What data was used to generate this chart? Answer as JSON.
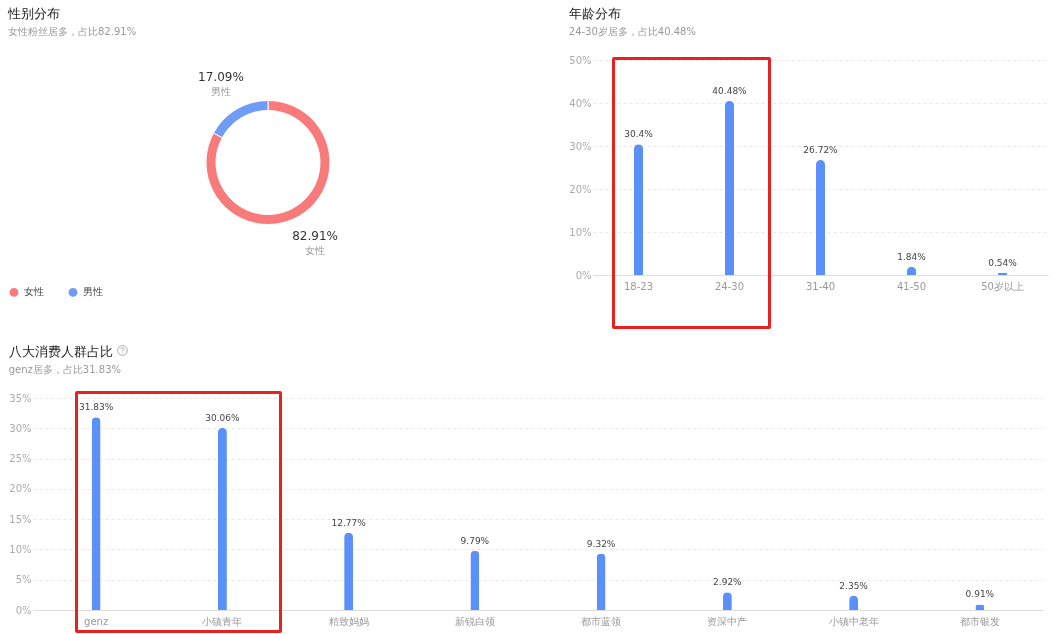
{
  "chart_data": [
    {
      "type": "donut",
      "title": "性别分布",
      "subtitle": "女性粉丝居多，占比82.91%",
      "categories": [
        "女性",
        "男性"
      ],
      "values": [
        82.91,
        17.09
      ],
      "colors": [
        "#f87a7a",
        "#6f9cf7"
      ],
      "value_labels": [
        "82.91%",
        "17.09%"
      ],
      "legend": "bottom"
    },
    {
      "type": "bar",
      "title": "年龄分布",
      "subtitle": "24-30岁居多，占比40.48%",
      "categories": [
        "18-23",
        "24-30",
        "31-40",
        "41-50",
        "50岁以上"
      ],
      "values": [
        30.4,
        40.48,
        26.72,
        1.84,
        0.54
      ],
      "color": "#5b8ff9",
      "value_labels": [
        "30.4%",
        "40.48%",
        "26.72%",
        "1.84%",
        "0.54%"
      ],
      "ylim": [
        0,
        50
      ],
      "yticks": [
        {
          "value": 0,
          "label": "0%"
        },
        {
          "value": 10,
          "label": "10%"
        },
        {
          "value": 20,
          "label": "20%"
        },
        {
          "value": 30,
          "label": "30%"
        },
        {
          "value": 40,
          "label": "40%"
        },
        {
          "value": 50,
          "label": "50%"
        }
      ],
      "grid": "y"
    },
    {
      "type": "bar",
      "title": "八大消费人群占比",
      "subtitle": "genz居多，占比31.83%",
      "categories": [
        "genz",
        "小镇青年",
        "精致妈妈",
        "新锐白领",
        "都市蓝领",
        "资深中产",
        "小镇中老年",
        "都市银发"
      ],
      "values": [
        31.83,
        30.06,
        12.77,
        9.79,
        9.32,
        2.92,
        2.35,
        0.91
      ],
      "color": "#5b8ff9",
      "value_labels": [
        "31.83%",
        "30.06%",
        "12.77%",
        "9.79%",
        "9.32%",
        "2.92%",
        "2.35%",
        "0.91%"
      ],
      "ylim": [
        0,
        35
      ],
      "yticks": [
        {
          "value": 0,
          "label": "0%"
        },
        {
          "value": 5,
          "label": "5%"
        },
        {
          "value": 10,
          "label": "10%"
        },
        {
          "value": 15,
          "label": "15%"
        },
        {
          "value": 20,
          "label": "20%"
        },
        {
          "value": 25,
          "label": "25%"
        },
        {
          "value": 30,
          "label": "30%"
        },
        {
          "value": 35,
          "label": "35%"
        }
      ],
      "grid": "y"
    }
  ]
}
